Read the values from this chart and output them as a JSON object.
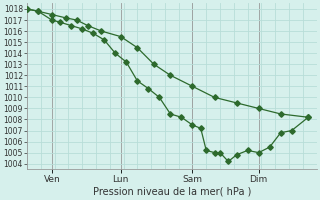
{
  "xlabel": "Pression niveau de la mer( hPa )",
  "bg_color": "#d6f0ec",
  "grid_color": "#b8ddd8",
  "line_color": "#2d6a2d",
  "ylim": [
    1003.5,
    1018.5
  ],
  "yticks": [
    1004,
    1005,
    1006,
    1007,
    1008,
    1009,
    1010,
    1011,
    1012,
    1013,
    1014,
    1015,
    1016,
    1017,
    1018
  ],
  "day_labels": [
    "Ven",
    "Lun",
    "Sam",
    "Dim"
  ],
  "day_positions": [
    0.09,
    0.34,
    0.6,
    0.84
  ],
  "xlim": [
    0,
    1.05
  ],
  "line1_x": [
    0.0,
    0.04,
    0.09,
    0.14,
    0.18,
    0.22,
    0.27,
    0.34,
    0.4,
    0.46,
    0.52,
    0.6,
    0.68,
    0.76,
    0.84,
    0.92,
    1.02
  ],
  "line1_y": [
    1018.0,
    1017.8,
    1017.5,
    1017.2,
    1017.0,
    1016.5,
    1016.0,
    1015.5,
    1014.5,
    1013.0,
    1012.0,
    1011.0,
    1010.0,
    1009.5,
    1009.0,
    1008.5,
    1008.2
  ],
  "line2_x": [
    0.0,
    0.04,
    0.09,
    0.12,
    0.16,
    0.2,
    0.24,
    0.28,
    0.32,
    0.36,
    0.4,
    0.44,
    0.48,
    0.52,
    0.56,
    0.6,
    0.63,
    0.65,
    0.68,
    0.7,
    0.73,
    0.76,
    0.8,
    0.84,
    0.88,
    0.92,
    0.96,
    1.02
  ],
  "line2_y": [
    1018.0,
    1017.8,
    1017.0,
    1016.8,
    1016.5,
    1016.2,
    1015.8,
    1015.2,
    1014.0,
    1013.2,
    1011.5,
    1010.8,
    1010.0,
    1008.5,
    1008.2,
    1007.5,
    1007.2,
    1005.2,
    1005.0,
    1005.0,
    1004.2,
    1004.8,
    1005.2,
    1005.0,
    1005.5,
    1006.8,
    1007.0,
    1008.2
  ]
}
